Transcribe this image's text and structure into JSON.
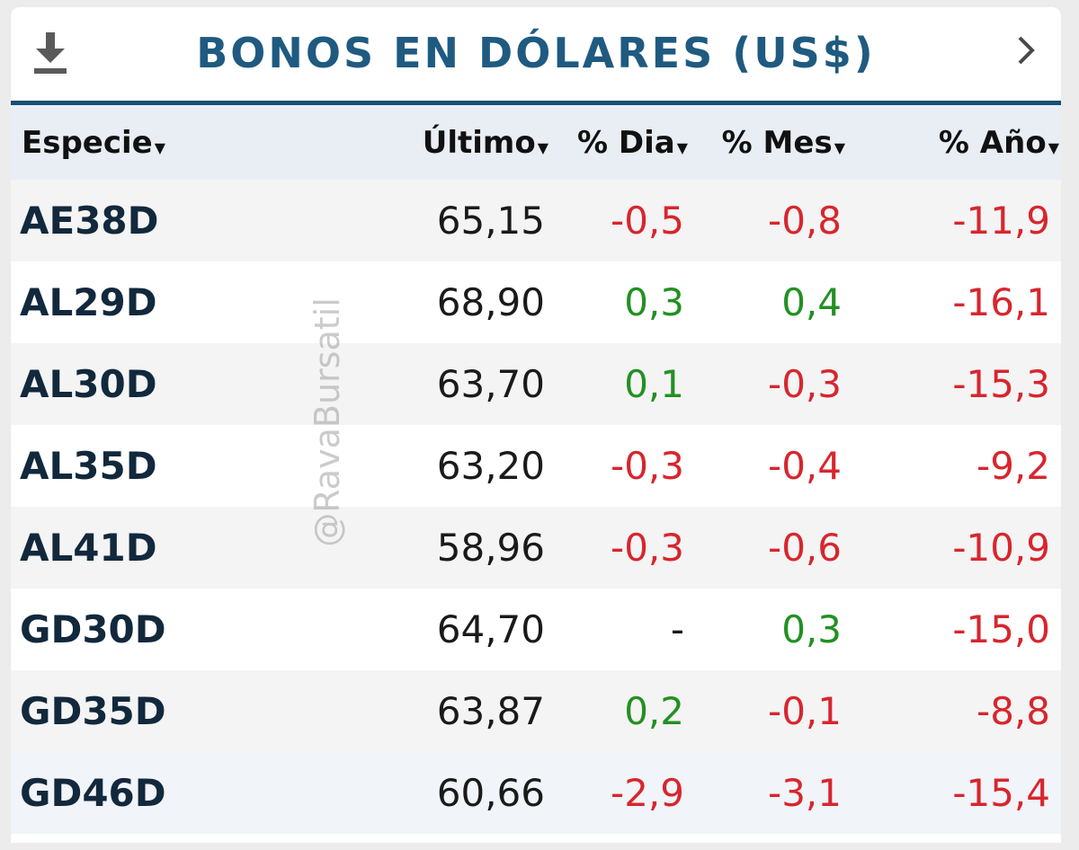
{
  "header": {
    "title": "BONOS EN DÓLARES (US$)",
    "download_icon": "download-icon",
    "nav_icon": "chevron-right-icon"
  },
  "columns": [
    "Especie",
    "Último",
    "% Dia",
    "% Mes",
    "% Año"
  ],
  "sort_icon": "caret-down-icon",
  "rows": [
    {
      "especie": "AE38D",
      "ultimo": "65,15",
      "dia": "-0,5",
      "mes": "-0,8",
      "anio": "-11,9"
    },
    {
      "especie": "AL29D",
      "ultimo": "68,90",
      "dia": "0,3",
      "mes": "0,4",
      "anio": "-16,1"
    },
    {
      "especie": "AL30D",
      "ultimo": "63,70",
      "dia": "0,1",
      "mes": "-0,3",
      "anio": "-15,3"
    },
    {
      "especie": "AL35D",
      "ultimo": "63,20",
      "dia": "-0,3",
      "mes": "-0,4",
      "anio": "-9,2"
    },
    {
      "especie": "AL41D",
      "ultimo": "58,96",
      "dia": "-0,3",
      "mes": "-0,6",
      "anio": "-10,9"
    },
    {
      "especie": "GD30D",
      "ultimo": "64,70",
      "dia": "-",
      "mes": "0,3",
      "anio": "-15,0"
    },
    {
      "especie": "GD35D",
      "ultimo": "63,87",
      "dia": "0,2",
      "mes": "-0,1",
      "anio": "-8,8"
    },
    {
      "especie": "GD46D",
      "ultimo": "60,66",
      "dia": "-2,9",
      "mes": "-3,1",
      "anio": "-15,4"
    }
  ],
  "watermark": "@RavaBursatil",
  "colors": {
    "accent": "#1f5a80",
    "negative": "#d7262e",
    "positive": "#239023",
    "header_bg": "#e9eef5"
  }
}
